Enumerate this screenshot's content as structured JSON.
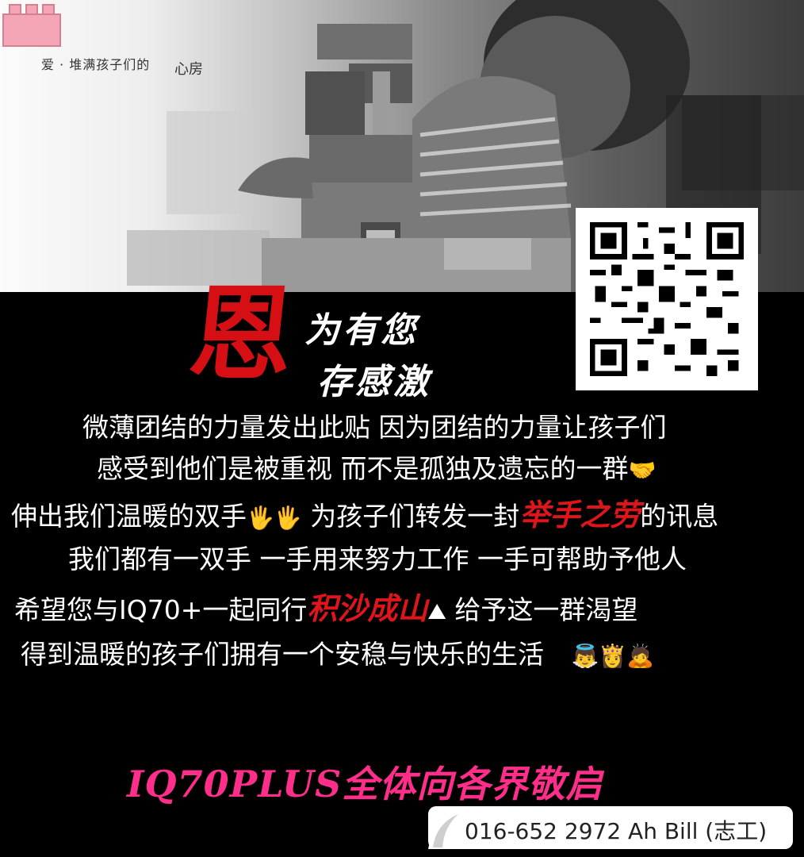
{
  "tagline": "爱 · 堆满孩子们的",
  "tagline_box_label": "心房",
  "hero_image": "boy-building-lego-castle",
  "qr_code": "qr-code",
  "heading": {
    "big_char": "恩",
    "line1": "为有您",
    "line2": "存感激"
  },
  "body": {
    "line1": "微薄团结的力量发出此贴 因为团结的力量让孩子们",
    "line2": "感受到他们是被重视 而不是孤独及遗忘的一群",
    "line2_emoji": "🤝",
    "line3_a": "伸出我们温暖的双手",
    "line3_emoji": "🖐🖐",
    "line3_b": "为孩子们转发一封",
    "line3_red": "举手之劳",
    "line3_c": "的讯息",
    "line4": "我们都有一双手 一手用来努力工作 一手可帮助予他人",
    "line5_a": "希望您与IQ70+一起同行",
    "line5_red": "积沙成山",
    "line5_emoji": "⛰",
    "line5_b": "给予这一群渴望",
    "line6": "得到温暖的孩子们拥有一个安稳与快乐的生活",
    "line6_emoji": "👼👸🙇"
  },
  "footer": {
    "pink_text": "IQ70PLUS全体向各界敬启",
    "contact": "016-652 2972 Ah Bill (志工)"
  },
  "colors": {
    "accent_red": "#e0151b",
    "accent_pink": "#ff2e8a",
    "background": "#000000"
  }
}
